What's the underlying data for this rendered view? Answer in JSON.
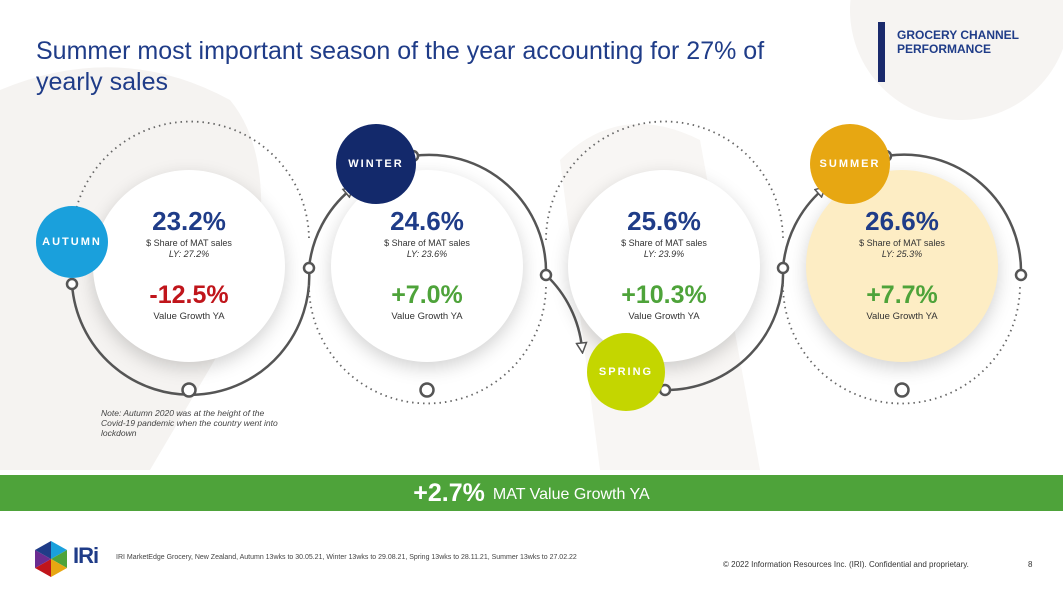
{
  "header": {
    "title": "Summer most important season of the year accounting for 27% of yearly sales",
    "tag": "GROCERY CHANNEL PERFORMANCE"
  },
  "seasons": [
    {
      "name": "AUTUMN",
      "share": "23.2%",
      "share_label": "$ Share of MAT sales",
      "ly": "LY: 27.2%",
      "growth": "-12.5%",
      "growth_label": "Value Growth YA",
      "badge_color": "#1aa0dc",
      "growth_color": "#c0151b"
    },
    {
      "name": "WINTER",
      "share": "24.6%",
      "share_label": "$ Share of MAT sales",
      "ly": "LY: 23.6%",
      "growth": "+7.0%",
      "growth_label": "Value Growth YA",
      "badge_color": "#13296b",
      "growth_color": "#4ea33a"
    },
    {
      "name": "SPRING",
      "share": "25.6%",
      "share_label": "$ Share of MAT sales",
      "ly": "LY: 23.9%",
      "growth": "+10.3%",
      "growth_label": "Value Growth YA",
      "badge_color": "#c4d600",
      "growth_color": "#4ea33a"
    },
    {
      "name": "SUMMER",
      "share": "26.6%",
      "share_label": "$ Share of MAT sales",
      "ly": "LY: 25.3%",
      "growth": "+7.7%",
      "growth_label": "Value Growth YA",
      "badge_color": "#e7a712",
      "growth_color": "#4ea33a"
    }
  ],
  "note": "Note: Autumn 2020 was at the height of the Covid-19 pandemic when the country went into lockdown",
  "banner": {
    "value": "+2.7%",
    "label": "MAT Value Growth YA"
  },
  "footer": {
    "logo": "IRi",
    "source": "IRI MarketEdge Grocery, New Zealand, Autumn 13wks to 30.05.21, Winter 13wks to 29.08.21, Spring 13wks to 28.11.21, Summer 13wks to 27.02.22",
    "copyright": "© 2022 Information Resources Inc. (IRI). Confidential and proprietary.",
    "page": "8"
  }
}
